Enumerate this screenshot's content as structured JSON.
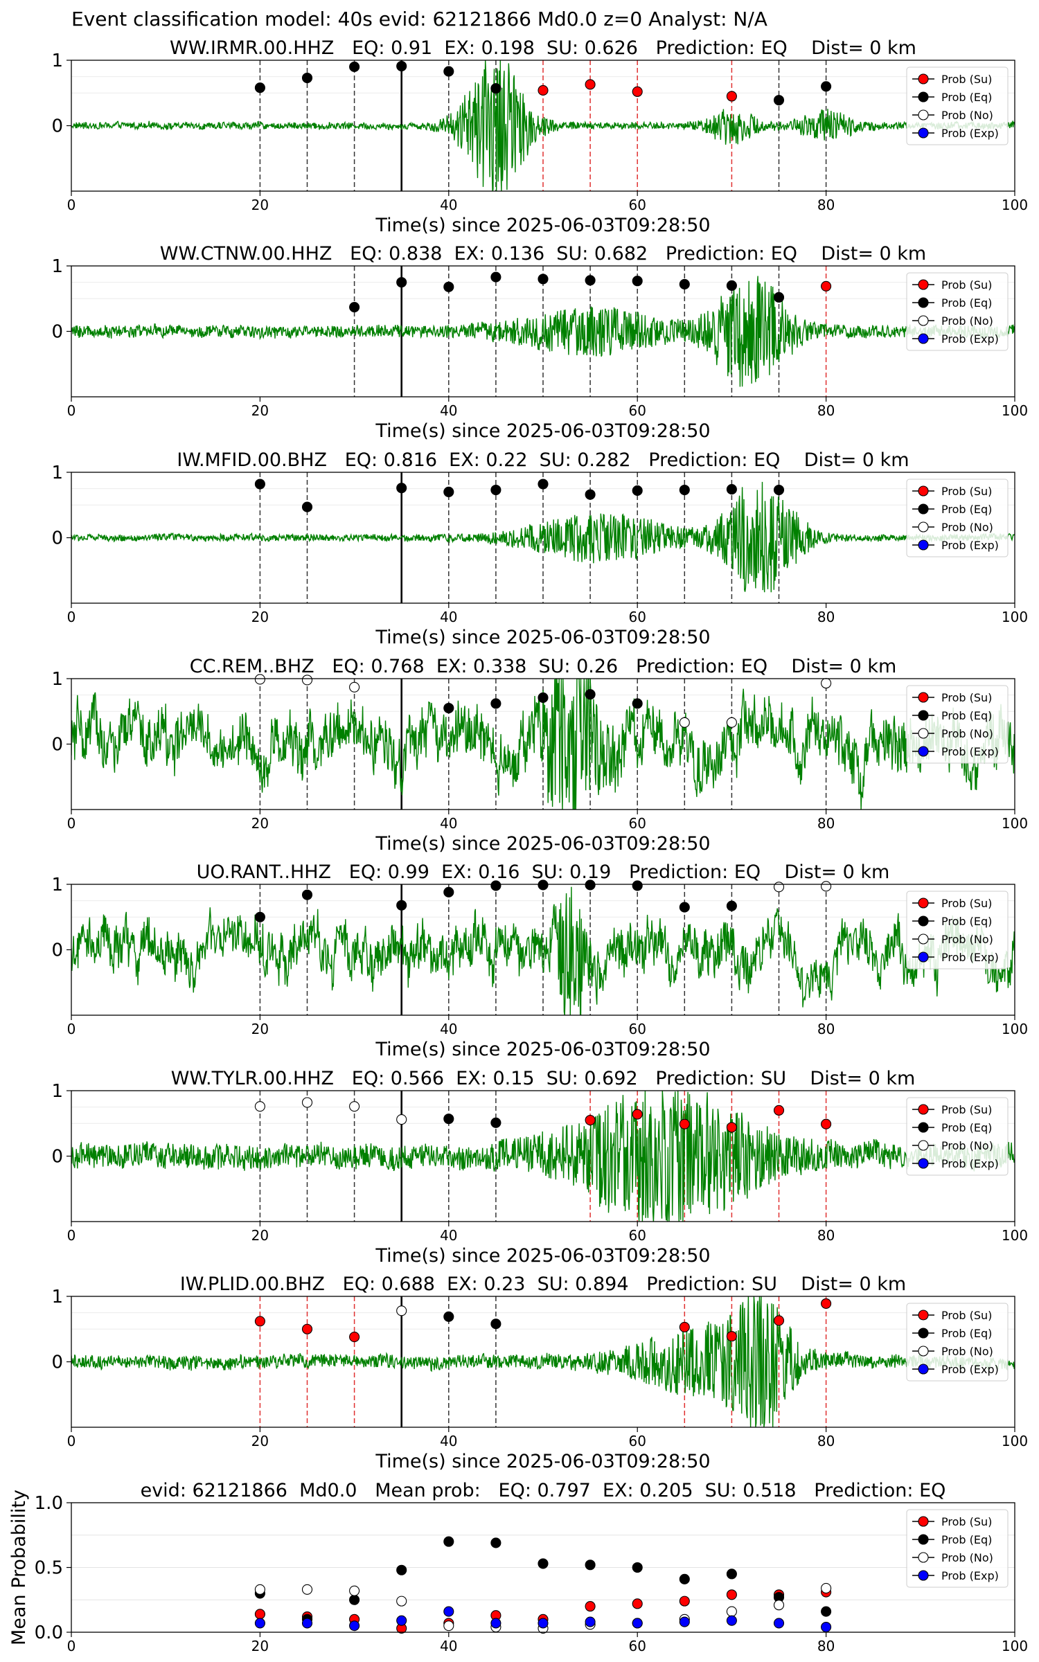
{
  "figure": {
    "suptitle": "Event classification model: 40s evid: 62121866 Md0.0 z=0 Analyst: N/A"
  },
  "legend_labels": [
    "Prob (Su)",
    "Prob (Eq)",
    "Prob (No)",
    "Prob (Exp)"
  ],
  "colors": {
    "su": "#ff0000",
    "eq": "#000000",
    "no": "#ffffff",
    "exp": "#0000ff",
    "waveform": "#008000"
  },
  "chart_data": [
    {
      "type": "scatter",
      "title": "WW.IRMR.00.HHZ   EQ: 0.91  EX: 0.198  SU: 0.626   Prediction: EQ    Dist= 0 km",
      "xlabel": "Time(s) since 2025-06-03T09:28:50",
      "xlim": [
        0,
        100
      ],
      "ylim": [
        -1,
        1
      ],
      "xticks": [
        "0",
        "20",
        "40",
        "60",
        "80",
        "100"
      ],
      "yticks": [
        "0",
        "1"
      ],
      "arrival_time": 35,
      "waveform": {
        "bursts": [
          [
            45,
            1.05,
            3.5
          ],
          [
            70,
            0.25,
            2.5
          ],
          [
            80,
            0.2,
            3
          ]
        ],
        "noise": 0.05
      },
      "series": [
        {
          "name": "Prob (Su)",
          "points": [
            [
              50,
              0.54
            ],
            [
              55,
              0.63
            ],
            [
              60,
              0.52
            ],
            [
              70,
              0.45
            ]
          ]
        },
        {
          "name": "Prob (Eq)",
          "points": [
            [
              20,
              0.58
            ],
            [
              25,
              0.73
            ],
            [
              30,
              0.9
            ],
            [
              35,
              0.91
            ],
            [
              40,
              0.83
            ],
            [
              45,
              0.57
            ],
            [
              75,
              0.39
            ],
            [
              80,
              0.6
            ]
          ]
        },
        {
          "name": "Prob (No)",
          "points": []
        },
        {
          "name": "Prob (Exp)",
          "points": []
        }
      ]
    },
    {
      "type": "scatter",
      "title": "WW.CTNW.00.HHZ   EQ: 0.838  EX: 0.136  SU: 0.682   Prediction: EQ    Dist= 0 km",
      "xlabel": "Time(s) since 2025-06-03T09:28:50",
      "xlim": [
        0,
        100
      ],
      "ylim": [
        -1,
        1
      ],
      "xticks": [
        "0",
        "20",
        "40",
        "60",
        "80",
        "100"
      ],
      "yticks": [
        "0",
        "1"
      ],
      "arrival_time": 35,
      "waveform": {
        "bursts": [
          [
            55,
            0.3,
            8
          ],
          [
            72,
            0.85,
            4
          ]
        ],
        "noise": 0.09
      },
      "series": [
        {
          "name": "Prob (Su)",
          "points": [
            [
              80,
              0.69
            ]
          ]
        },
        {
          "name": "Prob (Eq)",
          "points": [
            [
              30,
              0.37
            ],
            [
              35,
              0.75
            ],
            [
              40,
              0.68
            ],
            [
              45,
              0.83
            ],
            [
              50,
              0.8
            ],
            [
              55,
              0.78
            ],
            [
              60,
              0.77
            ],
            [
              65,
              0.72
            ],
            [
              70,
              0.7
            ],
            [
              75,
              0.52
            ]
          ]
        },
        {
          "name": "Prob (No)",
          "points": []
        },
        {
          "name": "Prob (Exp)",
          "points": []
        }
      ]
    },
    {
      "type": "scatter",
      "title": "IW.MFID.00.BHZ   EQ: 0.816  EX: 0.22  SU: 0.282   Prediction: EQ    Dist= 0 km",
      "xlabel": "Time(s) since 2025-06-03T09:28:50",
      "xlim": [
        0,
        100
      ],
      "ylim": [
        -1,
        1
      ],
      "xticks": [
        "0",
        "20",
        "40",
        "60",
        "80",
        "100"
      ],
      "yticks": [
        "0",
        "1"
      ],
      "arrival_time": 35,
      "waveform": {
        "bursts": [
          [
            56,
            0.35,
            8
          ],
          [
            73,
            0.9,
            4
          ]
        ],
        "noise": 0.05
      },
      "series": [
        {
          "name": "Prob (Su)",
          "points": []
        },
        {
          "name": "Prob (Eq)",
          "points": [
            [
              20,
              0.82
            ],
            [
              25,
              0.47
            ],
            [
              35,
              0.76
            ],
            [
              40,
              0.7
            ],
            [
              45,
              0.73
            ],
            [
              50,
              0.82
            ],
            [
              55,
              0.66
            ],
            [
              60,
              0.72
            ],
            [
              65,
              0.73
            ],
            [
              70,
              0.74
            ],
            [
              75,
              0.73
            ]
          ]
        },
        {
          "name": "Prob (No)",
          "points": []
        },
        {
          "name": "Prob (Exp)",
          "points": []
        }
      ]
    },
    {
      "type": "scatter",
      "title": "CC.REM..BHZ   EQ: 0.768  EX: 0.338  SU: 0.26   Prediction: EQ    Dist= 0 km",
      "xlabel": "Time(s) since 2025-06-03T09:28:50",
      "xlim": [
        0,
        100
      ],
      "ylim": [
        -1,
        1
      ],
      "xticks": [
        "0",
        "20",
        "40",
        "60",
        "80",
        "100"
      ],
      "yticks": [
        "0",
        "1"
      ],
      "arrival_time": 35,
      "waveform": {
        "bursts": [
          [
            53,
            0.95,
            3
          ]
        ],
        "noise": 0.32
      },
      "series": [
        {
          "name": "Prob (Su)",
          "points": []
        },
        {
          "name": "Prob (Eq)",
          "points": [
            [
              40,
              0.55
            ],
            [
              45,
              0.62
            ],
            [
              50,
              0.71
            ],
            [
              55,
              0.76
            ],
            [
              60,
              0.62
            ]
          ]
        },
        {
          "name": "Prob (No)",
          "points": [
            [
              20,
              0.99
            ],
            [
              25,
              0.98
            ],
            [
              30,
              0.87
            ],
            [
              65,
              0.33
            ],
            [
              70,
              0.33
            ],
            [
              80,
              0.93
            ]
          ]
        },
        {
          "name": "Prob (Exp)",
          "points": []
        }
      ]
    },
    {
      "type": "scatter",
      "title": "UO.RANT..HHZ   EQ: 0.99  EX: 0.16  SU: 0.19   Prediction: EQ    Dist= 0 km",
      "xlabel": "Time(s) since 2025-06-03T09:28:50",
      "xlim": [
        0,
        100
      ],
      "ylim": [
        -1,
        1
      ],
      "xticks": [
        "0",
        "20",
        "40",
        "60",
        "80",
        "100"
      ],
      "yticks": [
        "0",
        "1"
      ],
      "arrival_time": 35,
      "waveform": {
        "bursts": [
          [
            53,
            0.95,
            1.5
          ]
        ],
        "noise": 0.28
      },
      "series": [
        {
          "name": "Prob (Su)",
          "points": []
        },
        {
          "name": "Prob (Eq)",
          "points": [
            [
              20,
              0.5
            ],
            [
              25,
              0.84
            ],
            [
              35,
              0.68
            ],
            [
              40,
              0.88
            ],
            [
              45,
              0.98
            ],
            [
              50,
              0.99
            ],
            [
              55,
              0.99
            ],
            [
              60,
              0.98
            ],
            [
              65,
              0.65
            ],
            [
              70,
              0.67
            ]
          ]
        },
        {
          "name": "Prob (No)",
          "points": [
            [
              75,
              0.96
            ],
            [
              80,
              0.97
            ]
          ]
        },
        {
          "name": "Prob (Exp)",
          "points": []
        }
      ]
    },
    {
      "type": "scatter",
      "title": "WW.TYLR.00.HHZ   EQ: 0.566  EX: 0.15  SU: 0.692   Prediction: SU    Dist= 0 km",
      "xlabel": "Time(s) since 2025-06-03T09:28:50",
      "xlim": [
        0,
        100
      ],
      "ylim": [
        -1,
        1
      ],
      "xticks": [
        "0",
        "20",
        "40",
        "60",
        "80",
        "100"
      ],
      "yticks": [
        "0",
        "1"
      ],
      "arrival_time": 35,
      "waveform": {
        "bursts": [
          [
            63,
            0.95,
            10
          ]
        ],
        "noise": 0.18
      },
      "series": [
        {
          "name": "Prob (Su)",
          "points": [
            [
              55,
              0.55
            ],
            [
              60,
              0.64
            ],
            [
              65,
              0.49
            ],
            [
              70,
              0.44
            ],
            [
              75,
              0.7
            ],
            [
              80,
              0.49
            ]
          ]
        },
        {
          "name": "Prob (Eq)",
          "points": [
            [
              40,
              0.57
            ],
            [
              45,
              0.51
            ]
          ]
        },
        {
          "name": "Prob (No)",
          "points": [
            [
              20,
              0.76
            ],
            [
              25,
              0.82
            ],
            [
              30,
              0.76
            ],
            [
              35,
              0.56
            ]
          ]
        },
        {
          "name": "Prob (Exp)",
          "points": []
        }
      ]
    },
    {
      "type": "scatter",
      "title": "IW.PLID.00.BHZ   EQ: 0.688  EX: 0.23  SU: 0.894   Prediction: SU    Dist= 0 km",
      "xlabel": "Time(s) since 2025-06-03T09:28:50",
      "xlim": [
        0,
        100
      ],
      "ylim": [
        -1,
        1
      ],
      "xticks": [
        "0",
        "20",
        "40",
        "60",
        "80",
        "100"
      ],
      "yticks": [
        "0",
        "1"
      ],
      "arrival_time": 35,
      "waveform": {
        "bursts": [
          [
            67,
            0.45,
            8
          ],
          [
            73,
            0.95,
            3
          ]
        ],
        "noise": 0.1
      },
      "series": [
        {
          "name": "Prob (Su)",
          "points": [
            [
              20,
              0.62
            ],
            [
              25,
              0.5
            ],
            [
              30,
              0.38
            ],
            [
              65,
              0.53
            ],
            [
              70,
              0.39
            ],
            [
              75,
              0.63
            ],
            [
              80,
              0.89
            ]
          ]
        },
        {
          "name": "Prob (Eq)",
          "points": [
            [
              40,
              0.69
            ],
            [
              45,
              0.58
            ]
          ]
        },
        {
          "name": "Prob (No)",
          "points": [
            [
              35,
              0.78
            ]
          ]
        },
        {
          "name": "Prob (Exp)",
          "points": []
        }
      ]
    },
    {
      "type": "scatter",
      "title": "evid: 62121866  Md0.0   Mean prob:   EQ: 0.797  EX: 0.205  SU: 0.518   Prediction: EQ",
      "xlabel": "",
      "ylabel": "Mean Probability",
      "xlim": [
        0,
        100
      ],
      "ylim": [
        0,
        1
      ],
      "xticks": [
        "0",
        "20",
        "40",
        "60",
        "80",
        "100"
      ],
      "yticks": [
        "0.0",
        "0.5",
        "1.0"
      ],
      "series": [
        {
          "name": "Prob (Su)",
          "points": [
            [
              20,
              0.14
            ],
            [
              25,
              0.12
            ],
            [
              30,
              0.1
            ],
            [
              35,
              0.03
            ],
            [
              40,
              0.07
            ],
            [
              45,
              0.13
            ],
            [
              50,
              0.1
            ],
            [
              55,
              0.2
            ],
            [
              60,
              0.22
            ],
            [
              65,
              0.24
            ],
            [
              70,
              0.29
            ],
            [
              75,
              0.29
            ],
            [
              80,
              0.31
            ]
          ]
        },
        {
          "name": "Prob (Eq)",
          "points": [
            [
              20,
              0.3
            ],
            [
              25,
              0.1
            ],
            [
              30,
              0.25
            ],
            [
              35,
              0.48
            ],
            [
              40,
              0.7
            ],
            [
              45,
              0.69
            ],
            [
              50,
              0.53
            ],
            [
              55,
              0.52
            ],
            [
              60,
              0.5
            ],
            [
              65,
              0.41
            ],
            [
              70,
              0.45
            ],
            [
              75,
              0.27
            ],
            [
              80,
              0.16
            ]
          ]
        },
        {
          "name": "Prob (No)",
          "points": [
            [
              20,
              0.33
            ],
            [
              25,
              0.33
            ],
            [
              30,
              0.32
            ],
            [
              35,
              0.24
            ],
            [
              40,
              0.05
            ],
            [
              45,
              0.04
            ],
            [
              50,
              0.03
            ],
            [
              55,
              0.06
            ],
            [
              60,
              0.07
            ],
            [
              65,
              0.1
            ],
            [
              70,
              0.16
            ],
            [
              75,
              0.21
            ],
            [
              80,
              0.34
            ]
          ]
        },
        {
          "name": "Prob (Exp)",
          "points": [
            [
              20,
              0.07
            ],
            [
              25,
              0.07
            ],
            [
              30,
              0.05
            ],
            [
              35,
              0.09
            ],
            [
              40,
              0.16
            ],
            [
              45,
              0.07
            ],
            [
              50,
              0.07
            ],
            [
              55,
              0.08
            ],
            [
              60,
              0.07
            ],
            [
              65,
              0.08
            ],
            [
              70,
              0.09
            ],
            [
              75,
              0.07
            ],
            [
              80,
              0.04
            ]
          ]
        }
      ]
    }
  ]
}
